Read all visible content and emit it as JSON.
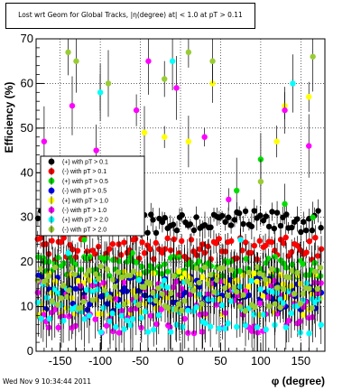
{
  "chart_data": {
    "type": "scatter",
    "title": "Lost wrt Geom for Global Tracks, |η(degree) at| < 1.0 at pT > 0.11",
    "xlabel": "φ (degree)",
    "ylabel": "Efficiency (%)",
    "xlim": [
      -180,
      180
    ],
    "ylim": [
      0,
      70
    ],
    "x_ticks": [
      -150,
      -100,
      -50,
      0,
      50,
      100,
      150
    ],
    "y_ticks": [
      0,
      10,
      20,
      30,
      40,
      50,
      60,
      70
    ],
    "grid": true,
    "legend_position": "left-middle",
    "series": [
      {
        "name": "(+) with pT > 0.1",
        "color": "#000000",
        "base": 29,
        "spread": 2.5,
        "sparse": []
      },
      {
        "name": "(-) with pT > 0.1",
        "color": "#ff0000",
        "base": 23,
        "spread": 2.5,
        "sparse": []
      },
      {
        "name": "(+) with pT > 0.5",
        "color": "#00dd00",
        "base": 19,
        "spread": 2.5,
        "sparse": [
          [
            -170,
            20
          ],
          [
            -120,
            25
          ],
          [
            -60,
            22
          ],
          [
            70,
            36
          ],
          [
            100,
            43
          ],
          [
            130,
            33
          ],
          [
            165,
            30
          ]
        ]
      },
      {
        "name": "(-) with pT > 0.5",
        "color": "#0000ff",
        "base": 13,
        "spread": 4,
        "sparse": []
      },
      {
        "name": "(+) with pT > 1.0",
        "color": "#ffff00",
        "base": 13,
        "spread": 5,
        "sparse": [
          [
            -165,
            17
          ],
          [
            -100,
            58
          ],
          [
            -45,
            49
          ],
          [
            -20,
            48
          ],
          [
            10,
            47
          ],
          [
            40,
            60
          ],
          [
            120,
            47
          ],
          [
            160,
            57
          ],
          [
            130,
            55
          ]
        ]
      },
      {
        "name": "(-) with pT > 1.0",
        "color": "#ff00ff",
        "base": 10,
        "spread": 6,
        "sparse": [
          [
            -170,
            47
          ],
          [
            -135,
            55
          ],
          [
            -105,
            45
          ],
          [
            -55,
            54
          ],
          [
            -40,
            65
          ],
          [
            -5,
            59
          ],
          [
            30,
            48
          ],
          [
            60,
            34
          ],
          [
            130,
            54
          ],
          [
            160,
            46
          ]
        ]
      },
      {
        "name": "(+) with pT > 2.0",
        "color": "#00ffff",
        "base": 10,
        "spread": 6,
        "sparse": [
          [
            -140,
            22
          ],
          [
            -100,
            58
          ],
          [
            -10,
            65
          ],
          [
            75,
            25
          ],
          [
            140,
            60
          ],
          [
            120,
            13
          ]
        ]
      },
      {
        "name": "(-) with pT > 2.0",
        "color": "#99cc33",
        "base": 14,
        "spread": 5,
        "sparse": [
          [
            -140,
            67
          ],
          [
            -130,
            65
          ],
          [
            -90,
            60
          ],
          [
            -20,
            61
          ],
          [
            10,
            67
          ],
          [
            40,
            65
          ],
          [
            100,
            38
          ],
          [
            165,
            66
          ]
        ]
      }
    ]
  },
  "header": {
    "title": "Lost wrt Geom for Global Tracks, |η(degree) at| < 1.0 at pT > 0.11"
  },
  "footer": {
    "timestamp": "Wed Nov  9 10:34:44 2011"
  }
}
